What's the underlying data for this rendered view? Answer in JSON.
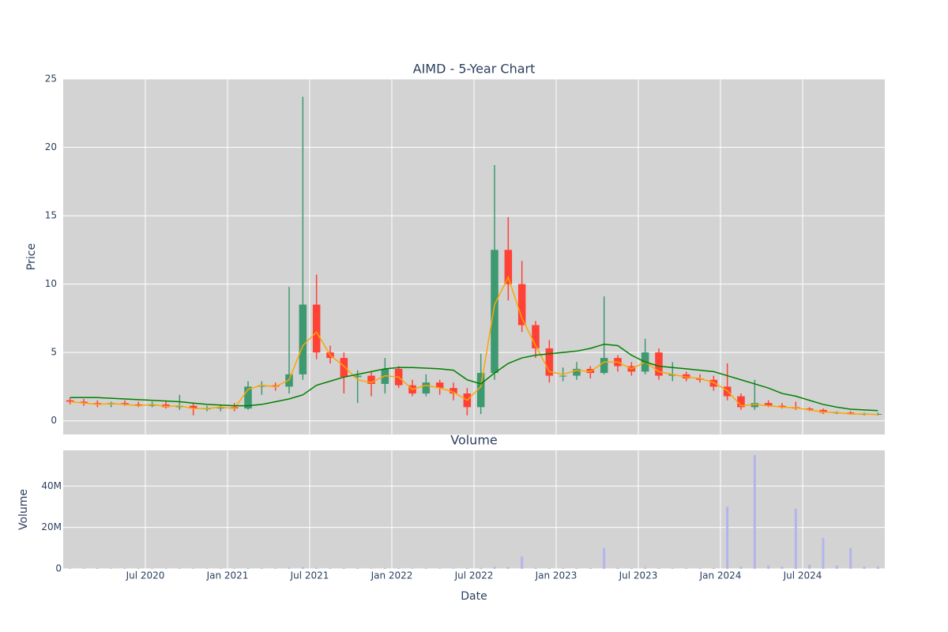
{
  "chart_data": [
    {
      "type": "candlestick",
      "title": "AIMD - 5-Year Chart",
      "y_label": "Price",
      "x": [
        "2020-01",
        "2020-02",
        "2020-03",
        "2020-04",
        "2020-05",
        "2020-06",
        "2020-07",
        "2020-08",
        "2020-09",
        "2020-10",
        "2020-11",
        "2020-12",
        "2021-01",
        "2021-02",
        "2021-03",
        "2021-04",
        "2021-05",
        "2021-06",
        "2021-07",
        "2021-08",
        "2021-09",
        "2021-10",
        "2021-11",
        "2021-12",
        "2022-01",
        "2022-02",
        "2022-03",
        "2022-04",
        "2022-05",
        "2022-06",
        "2022-07",
        "2022-08",
        "2022-09",
        "2022-10",
        "2022-11",
        "2022-12",
        "2023-01",
        "2023-02",
        "2023-03",
        "2023-04",
        "2023-05",
        "2023-06",
        "2023-07",
        "2023-08",
        "2023-09",
        "2023-10",
        "2023-11",
        "2023-12",
        "2024-01",
        "2024-02",
        "2024-03",
        "2024-04",
        "2024-05",
        "2024-06",
        "2024-07",
        "2024-08",
        "2024-09",
        "2024-10",
        "2024-11",
        "2024-12"
      ],
      "open": [
        1.5,
        1.4,
        1.3,
        1.2,
        1.3,
        1.2,
        1.1,
        1.2,
        1.0,
        1.1,
        0.9,
        0.9,
        1.0,
        0.9,
        2.5,
        2.6,
        2.5,
        3.4,
        8.5,
        5.0,
        4.6,
        3.2,
        3.3,
        2.7,
        3.8,
        2.6,
        2.0,
        2.8,
        2.4,
        2.0,
        1.0,
        3.5,
        12.5,
        10.0,
        7.0,
        5.3,
        3.3,
        3.3,
        3.8,
        3.5,
        4.6,
        4.0,
        3.6,
        5.0,
        3.3,
        3.4,
        3.1,
        3.0,
        2.5,
        1.8,
        1.0,
        1.3,
        1.1,
        1.0,
        0.9,
        0.8,
        0.6,
        0.6,
        0.5,
        0.5
      ],
      "high": [
        1.7,
        1.6,
        1.5,
        1.4,
        1.5,
        1.4,
        1.4,
        1.5,
        1.9,
        1.3,
        1.1,
        1.2,
        1.3,
        2.9,
        2.9,
        2.8,
        9.8,
        23.7,
        10.7,
        5.5,
        5.0,
        3.7,
        3.6,
        4.6,
        4.0,
        3.0,
        3.4,
        3.0,
        2.8,
        2.4,
        4.9,
        18.7,
        14.9,
        11.7,
        7.3,
        5.9,
        3.9,
        4.3,
        4.0,
        9.1,
        4.8,
        4.3,
        6.0,
        5.3,
        4.3,
        3.6,
        3.4,
        3.3,
        4.2,
        2.0,
        3.0,
        1.5,
        1.3,
        1.4,
        1.0,
        0.9,
        0.7,
        0.7,
        0.6,
        0.6
      ],
      "low": [
        1.2,
        1.1,
        1.0,
        1.0,
        1.1,
        1.0,
        1.0,
        0.9,
        0.8,
        0.4,
        0.7,
        0.7,
        0.7,
        0.8,
        1.9,
        2.2,
        2.0,
        3.0,
        4.5,
        4.2,
        2.0,
        1.3,
        1.8,
        2.0,
        2.4,
        1.8,
        1.8,
        1.9,
        1.5,
        0.4,
        0.5,
        3.0,
        8.8,
        6.5,
        4.6,
        2.8,
        2.9,
        3.0,
        3.1,
        3.4,
        3.6,
        3.3,
        3.4,
        3.0,
        2.9,
        2.9,
        2.8,
        2.2,
        1.5,
        0.8,
        0.8,
        1.0,
        0.9,
        0.8,
        0.7,
        0.5,
        0.5,
        0.45,
        0.4,
        0.4
      ],
      "close": [
        1.4,
        1.3,
        1.2,
        1.3,
        1.2,
        1.1,
        1.2,
        1.0,
        1.1,
        0.9,
        0.9,
        1.0,
        0.9,
        2.5,
        2.6,
        2.5,
        3.4,
        8.5,
        5.0,
        4.6,
        3.2,
        3.3,
        2.7,
        3.8,
        2.6,
        2.0,
        2.8,
        2.4,
        2.0,
        1.0,
        3.5,
        12.5,
        10.0,
        7.0,
        5.3,
        3.3,
        3.3,
        3.8,
        3.5,
        4.6,
        4.0,
        3.6,
        5.0,
        3.3,
        3.4,
        3.1,
        3.0,
        2.5,
        1.8,
        1.0,
        1.3,
        1.1,
        1.0,
        0.9,
        0.8,
        0.6,
        0.6,
        0.5,
        0.5,
        0.5
      ],
      "increasing_color": "#3d9970",
      "decreasing_color": "#ff4136",
      "moving_averages": [
        {
          "color": "#ffa500",
          "values": [
            1.4,
            1.3,
            1.2,
            1.25,
            1.2,
            1.1,
            1.2,
            1.05,
            1.1,
            0.9,
            0.9,
            1.0,
            0.9,
            2.3,
            2.6,
            2.5,
            3.0,
            5.5,
            6.5,
            4.8,
            4.0,
            3.0,
            2.8,
            3.3,
            3.2,
            2.3,
            2.6,
            2.4,
            2.1,
            1.5,
            2.5,
            8.5,
            10.5,
            7.5,
            5.5,
            3.6,
            3.4,
            3.7,
            3.6,
            4.3,
            4.3,
            3.8,
            4.3,
            3.6,
            3.4,
            3.2,
            3.1,
            2.8,
            2.2,
            1.1,
            1.2,
            1.1,
            1.0,
            0.95,
            0.8,
            0.65,
            0.6,
            0.5,
            0.5,
            0.45
          ]
        },
        {
          "color": "#008000",
          "values": [
            1.7,
            1.7,
            1.7,
            1.65,
            1.6,
            1.55,
            1.5,
            1.45,
            1.4,
            1.3,
            1.2,
            1.15,
            1.1,
            1.1,
            1.2,
            1.4,
            1.6,
            1.9,
            2.6,
            2.9,
            3.2,
            3.4,
            3.6,
            3.8,
            3.9,
            3.9,
            3.85,
            3.8,
            3.7,
            3.0,
            2.7,
            3.5,
            4.2,
            4.6,
            4.8,
            4.9,
            5.0,
            5.1,
            5.3,
            5.6,
            5.5,
            4.8,
            4.3,
            4.0,
            3.9,
            3.8,
            3.7,
            3.6,
            3.3,
            3.0,
            2.7,
            2.4,
            2.0,
            1.8,
            1.5,
            1.2,
            1.0,
            0.85,
            0.8,
            0.75
          ]
        }
      ],
      "xlim": [
        "2020-01",
        "2025-01"
      ],
      "xticks": [
        "2020-07",
        "2021-01",
        "2021-07",
        "2022-01",
        "2022-07",
        "2023-01",
        "2023-07",
        "2024-01",
        "2024-07"
      ],
      "ylim": [
        -1,
        25
      ],
      "yticks": [
        0,
        5,
        10,
        15,
        20,
        25
      ],
      "grid": true
    },
    {
      "type": "bar",
      "title": "Volume",
      "x_label": "Date",
      "y_label": "Volume",
      "x": [
        "2020-01",
        "2020-02",
        "2020-03",
        "2020-04",
        "2020-05",
        "2020-06",
        "2020-07",
        "2020-08",
        "2020-09",
        "2020-10",
        "2020-11",
        "2020-12",
        "2021-01",
        "2021-02",
        "2021-03",
        "2021-04",
        "2021-05",
        "2021-06",
        "2021-07",
        "2021-08",
        "2021-09",
        "2021-10",
        "2021-11",
        "2021-12",
        "2022-01",
        "2022-02",
        "2022-03",
        "2022-04",
        "2022-05",
        "2022-06",
        "2022-07",
        "2022-08",
        "2022-09",
        "2022-10",
        "2022-11",
        "2022-12",
        "2023-01",
        "2023-02",
        "2023-03",
        "2023-04",
        "2023-05",
        "2023-06",
        "2023-07",
        "2023-08",
        "2023-09",
        "2023-10",
        "2023-11",
        "2023-12",
        "2024-01",
        "2024-02",
        "2024-03",
        "2024-04",
        "2024-05",
        "2024-06",
        "2024-07",
        "2024-08",
        "2024-09",
        "2024-10",
        "2024-11",
        "2024-12"
      ],
      "values": [
        200000,
        200000,
        300000,
        200000,
        200000,
        200000,
        200000,
        200000,
        300000,
        200000,
        200000,
        200000,
        200000,
        400000,
        300000,
        200000,
        600000,
        800000,
        500000,
        300000,
        300000,
        300000,
        200000,
        300000,
        300000,
        200000,
        200000,
        200000,
        200000,
        300000,
        500000,
        1000000,
        800000,
        6000000,
        500000,
        400000,
        300000,
        300000,
        400000,
        10000000,
        500000,
        400000,
        600000,
        400000,
        300000,
        300000,
        300000,
        400000,
        30000000,
        1000000,
        55000000,
        1500000,
        1000000,
        29000000,
        2000000,
        15000000,
        1500000,
        10000000,
        1000000,
        1000000
      ],
      "color": "#b4b4ec",
      "xlim": [
        "2020-01",
        "2025-01"
      ],
      "xticks": [
        {
          "value": "2020-07",
          "label": "Jul 2020"
        },
        {
          "value": "2021-01",
          "label": "Jan 2021"
        },
        {
          "value": "2021-07",
          "label": "Jul 2021"
        },
        {
          "value": "2022-01",
          "label": "Jan 2022"
        },
        {
          "value": "2022-07",
          "label": "Jul 2022"
        },
        {
          "value": "2023-01",
          "label": "Jan 2023"
        },
        {
          "value": "2023-07",
          "label": "Jul 2023"
        },
        {
          "value": "2024-01",
          "label": "Jan 2024"
        },
        {
          "value": "2024-07",
          "label": "Jul 2024"
        }
      ],
      "ylim": [
        0,
        57300000
      ],
      "yticks": [
        0,
        {
          "value": 20000000,
          "label": "20M"
        },
        {
          "value": 40000000,
          "label": "40M"
        }
      ],
      "grid": true
    }
  ]
}
